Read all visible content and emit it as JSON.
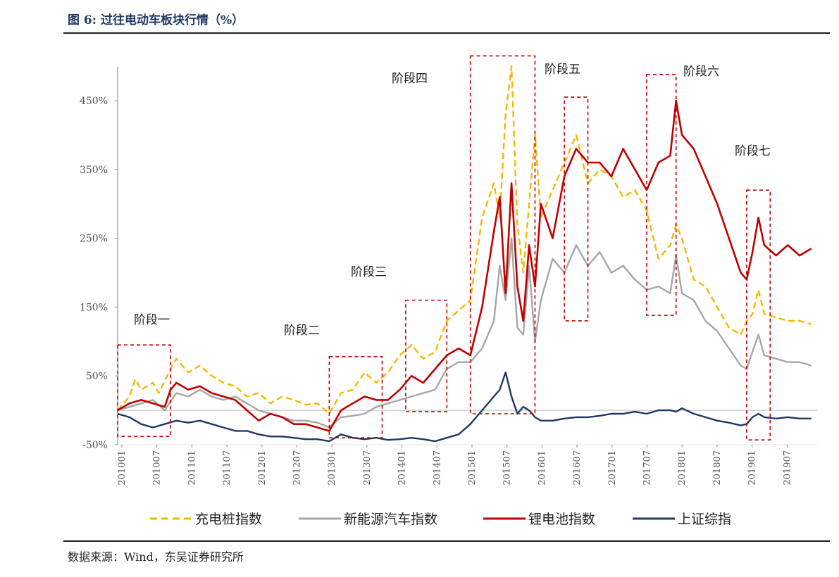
{
  "figure": {
    "title": "图 6:  过往电动车板块行情（%）",
    "source": "数据来源：Wind，东吴证券研究所"
  },
  "chart_data": {
    "type": "line",
    "yticks": [
      "450%",
      "350%",
      "250%",
      "150%",
      "50%",
      "-50%"
    ],
    "ytick_values": [
      450,
      350,
      250,
      150,
      50,
      -50
    ],
    "ylim": [
      -50,
      500
    ],
    "xticks": [
      "201001",
      "201007",
      "201101",
      "201107",
      "201201",
      "201207",
      "201301",
      "201307",
      "201401",
      "201407",
      "201501",
      "201507",
      "201601",
      "201607",
      "201701",
      "201707",
      "201801",
      "201807",
      "201901",
      "201907"
    ],
    "xlim": [
      0,
      119
    ],
    "legend_position": "bottom",
    "series": [
      {
        "name": "充电桩指数",
        "color": "#f5b800",
        "style": "dashed",
        "values": [
          [
            0,
            0
          ],
          [
            2,
            20
          ],
          [
            3,
            45
          ],
          [
            4,
            30
          ],
          [
            6,
            40
          ],
          [
            7,
            25
          ],
          [
            9,
            60
          ],
          [
            10,
            75
          ],
          [
            12,
            55
          ],
          [
            14,
            65
          ],
          [
            16,
            50
          ],
          [
            18,
            40
          ],
          [
            20,
            35
          ],
          [
            22,
            20
          ],
          [
            24,
            25
          ],
          [
            26,
            10
          ],
          [
            28,
            20
          ],
          [
            30,
            15
          ],
          [
            32,
            8
          ],
          [
            34,
            10
          ],
          [
            36,
            -5
          ],
          [
            38,
            25
          ],
          [
            40,
            30
          ],
          [
            42,
            55
          ],
          [
            44,
            40
          ],
          [
            46,
            55
          ],
          [
            48,
            80
          ],
          [
            50,
            95
          ],
          [
            52,
            75
          ],
          [
            54,
            85
          ],
          [
            56,
            130
          ],
          [
            58,
            145
          ],
          [
            60,
            160
          ],
          [
            62,
            280
          ],
          [
            64,
            330
          ],
          [
            65,
            280
          ],
          [
            66,
            430
          ],
          [
            67,
            500
          ],
          [
            68,
            270
          ],
          [
            69,
            200
          ],
          [
            70,
            300
          ],
          [
            71,
            400
          ],
          [
            72,
            280
          ],
          [
            74,
            320
          ],
          [
            76,
            360
          ],
          [
            78,
            400
          ],
          [
            80,
            330
          ],
          [
            82,
            350
          ],
          [
            84,
            340
          ],
          [
            86,
            310
          ],
          [
            88,
            320
          ],
          [
            90,
            290
          ],
          [
            92,
            220
          ],
          [
            94,
            240
          ],
          [
            95,
            270
          ],
          [
            96,
            250
          ],
          [
            98,
            190
          ],
          [
            100,
            180
          ],
          [
            102,
            150
          ],
          [
            104,
            120
          ],
          [
            106,
            110
          ],
          [
            107,
            130
          ],
          [
            108,
            140
          ],
          [
            109,
            175
          ],
          [
            110,
            140
          ],
          [
            112,
            135
          ],
          [
            114,
            130
          ],
          [
            116,
            130
          ],
          [
            118,
            125
          ]
        ]
      },
      {
        "name": "新能源汽车指数",
        "color": "#a6a6a6",
        "style": "solid",
        "values": [
          [
            0,
            0
          ],
          [
            2,
            5
          ],
          [
            4,
            10
          ],
          [
            6,
            15
          ],
          [
            8,
            0
          ],
          [
            10,
            25
          ],
          [
            12,
            20
          ],
          [
            14,
            30
          ],
          [
            16,
            20
          ],
          [
            18,
            15
          ],
          [
            20,
            20
          ],
          [
            22,
            10
          ],
          [
            24,
            0
          ],
          [
            26,
            -5
          ],
          [
            28,
            -10
          ],
          [
            30,
            -15
          ],
          [
            32,
            -15
          ],
          [
            34,
            -18
          ],
          [
            36,
            -25
          ],
          [
            38,
            -10
          ],
          [
            40,
            -8
          ],
          [
            42,
            -5
          ],
          [
            44,
            5
          ],
          [
            46,
            10
          ],
          [
            48,
            15
          ],
          [
            50,
            20
          ],
          [
            52,
            25
          ],
          [
            54,
            30
          ],
          [
            56,
            60
          ],
          [
            58,
            70
          ],
          [
            60,
            70
          ],
          [
            62,
            90
          ],
          [
            64,
            130
          ],
          [
            65,
            210
          ],
          [
            66,
            160
          ],
          [
            67,
            250
          ],
          [
            68,
            120
          ],
          [
            69,
            110
          ],
          [
            70,
            210
          ],
          [
            71,
            100
          ],
          [
            72,
            160
          ],
          [
            74,
            220
          ],
          [
            76,
            200
          ],
          [
            78,
            240
          ],
          [
            80,
            210
          ],
          [
            82,
            230
          ],
          [
            84,
            200
          ],
          [
            86,
            210
          ],
          [
            88,
            190
          ],
          [
            90,
            175
          ],
          [
            92,
            180
          ],
          [
            94,
            170
          ],
          [
            95,
            225
          ],
          [
            96,
            170
          ],
          [
            98,
            160
          ],
          [
            100,
            130
          ],
          [
            102,
            115
          ],
          [
            104,
            90
          ],
          [
            106,
            65
          ],
          [
            107,
            60
          ],
          [
            108,
            85
          ],
          [
            109,
            110
          ],
          [
            110,
            80
          ],
          [
            112,
            75
          ],
          [
            114,
            70
          ],
          [
            116,
            70
          ],
          [
            118,
            65
          ]
        ]
      },
      {
        "name": "锂电池指数",
        "color": "#c00000",
        "style": "solid",
        "values": [
          [
            0,
            0
          ],
          [
            2,
            10
          ],
          [
            4,
            15
          ],
          [
            6,
            10
          ],
          [
            8,
            5
          ],
          [
            9,
            30
          ],
          [
            10,
            40
          ],
          [
            12,
            30
          ],
          [
            14,
            35
          ],
          [
            16,
            25
          ],
          [
            18,
            20
          ],
          [
            20,
            15
          ],
          [
            22,
            0
          ],
          [
            24,
            -15
          ],
          [
            26,
            -5
          ],
          [
            28,
            -10
          ],
          [
            30,
            -20
          ],
          [
            32,
            -20
          ],
          [
            34,
            -25
          ],
          [
            36,
            -30
          ],
          [
            38,
            0
          ],
          [
            40,
            10
          ],
          [
            42,
            20
          ],
          [
            44,
            15
          ],
          [
            46,
            15
          ],
          [
            48,
            30
          ],
          [
            50,
            50
          ],
          [
            52,
            40
          ],
          [
            54,
            60
          ],
          [
            56,
            80
          ],
          [
            58,
            90
          ],
          [
            60,
            80
          ],
          [
            62,
            150
          ],
          [
            64,
            260
          ],
          [
            65,
            310
          ],
          [
            66,
            170
          ],
          [
            67,
            330
          ],
          [
            68,
            180
          ],
          [
            69,
            130
          ],
          [
            70,
            240
          ],
          [
            71,
            180
          ],
          [
            72,
            300
          ],
          [
            74,
            250
          ],
          [
            76,
            340
          ],
          [
            78,
            380
          ],
          [
            80,
            360
          ],
          [
            82,
            360
          ],
          [
            84,
            340
          ],
          [
            86,
            380
          ],
          [
            88,
            350
          ],
          [
            90,
            320
          ],
          [
            92,
            360
          ],
          [
            94,
            370
          ],
          [
            95,
            450
          ],
          [
            96,
            400
          ],
          [
            98,
            380
          ],
          [
            100,
            340
          ],
          [
            102,
            300
          ],
          [
            104,
            250
          ],
          [
            106,
            200
          ],
          [
            107,
            190
          ],
          [
            108,
            230
          ],
          [
            109,
            280
          ],
          [
            110,
            240
          ],
          [
            112,
            225
          ],
          [
            114,
            240
          ],
          [
            116,
            225
          ],
          [
            118,
            235
          ]
        ]
      },
      {
        "name": "上证综指",
        "color": "#1f3864",
        "style": "solid",
        "values": [
          [
            0,
            -5
          ],
          [
            2,
            -10
          ],
          [
            4,
            -20
          ],
          [
            6,
            -25
          ],
          [
            8,
            -20
          ],
          [
            10,
            -15
          ],
          [
            12,
            -18
          ],
          [
            14,
            -15
          ],
          [
            16,
            -20
          ],
          [
            18,
            -25
          ],
          [
            20,
            -30
          ],
          [
            22,
            -30
          ],
          [
            24,
            -35
          ],
          [
            26,
            -38
          ],
          [
            28,
            -38
          ],
          [
            30,
            -40
          ],
          [
            32,
            -42
          ],
          [
            34,
            -42
          ],
          [
            36,
            -45
          ],
          [
            38,
            -35
          ],
          [
            40,
            -40
          ],
          [
            42,
            -42
          ],
          [
            44,
            -40
          ],
          [
            46,
            -43
          ],
          [
            48,
            -42
          ],
          [
            50,
            -40
          ],
          [
            52,
            -42
          ],
          [
            54,
            -45
          ],
          [
            56,
            -40
          ],
          [
            58,
            -35
          ],
          [
            60,
            -20
          ],
          [
            62,
            0
          ],
          [
            64,
            20
          ],
          [
            65,
            30
          ],
          [
            66,
            55
          ],
          [
            67,
            20
          ],
          [
            68,
            -5
          ],
          [
            69,
            5
          ],
          [
            70,
            0
          ],
          [
            71,
            -10
          ],
          [
            72,
            -15
          ],
          [
            74,
            -15
          ],
          [
            76,
            -12
          ],
          [
            78,
            -10
          ],
          [
            80,
            -10
          ],
          [
            82,
            -8
          ],
          [
            84,
            -5
          ],
          [
            86,
            -5
          ],
          [
            88,
            -2
          ],
          [
            90,
            -5
          ],
          [
            92,
            0
          ],
          [
            94,
            0
          ],
          [
            95,
            -2
          ],
          [
            96,
            3
          ],
          [
            98,
            -5
          ],
          [
            100,
            -10
          ],
          [
            102,
            -15
          ],
          [
            104,
            -18
          ],
          [
            106,
            -22
          ],
          [
            107,
            -20
          ],
          [
            108,
            -10
          ],
          [
            109,
            -5
          ],
          [
            110,
            -10
          ],
          [
            112,
            -12
          ],
          [
            114,
            -10
          ],
          [
            116,
            -12
          ],
          [
            118,
            -12
          ]
        ]
      }
    ],
    "stages": [
      {
        "label": "阶段一",
        "x0": 0,
        "x1": 9,
        "y0": -38,
        "y1": 95
      },
      {
        "label": "阶段二",
        "x0": 36,
        "x1": 45,
        "y0": -40,
        "y1": 78
      },
      {
        "label": "阶段三",
        "x0": 49,
        "x1": 56,
        "y0": -2,
        "y1": 160
      },
      {
        "label": "阶段四",
        "x0": 60,
        "x1": 71,
        "y0": -5,
        "y1": 515
      },
      {
        "label": "阶段五",
        "x0": 76,
        "x1": 80,
        "y0": 130,
        "y1": 455
      },
      {
        "label": "阶段六",
        "x0": 90,
        "x1": 95,
        "y0": 138,
        "y1": 488
      },
      {
        "label": "阶段七",
        "x0": 107,
        "x1": 111,
        "y0": -43,
        "y1": 320
      }
    ]
  }
}
